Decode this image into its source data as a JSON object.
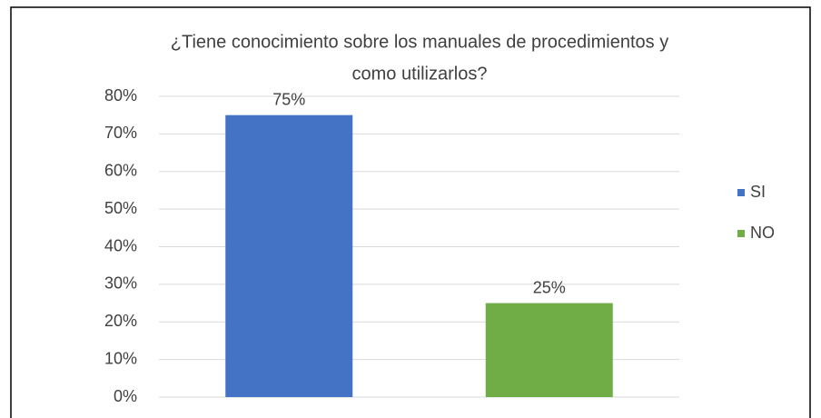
{
  "chart_data": {
    "type": "bar",
    "title": [
      "¿Tiene conocimiento sobre los manuales de procedimientos y",
      "como utilizarlos?"
    ],
    "categories": [
      "SI",
      "NO"
    ],
    "values": [
      75,
      25
    ],
    "value_labels": [
      "75%",
      "25%"
    ],
    "colors": [
      "#4472c4",
      "#70ad47"
    ],
    "ylim": [
      0,
      80
    ],
    "yticks": [
      {
        "value": 0,
        "label": "0%"
      },
      {
        "value": 10,
        "label": "10%"
      },
      {
        "value": 20,
        "label": "20%"
      },
      {
        "value": 30,
        "label": "30%"
      },
      {
        "value": 40,
        "label": "40%"
      },
      {
        "value": 50,
        "label": "50%"
      },
      {
        "value": 60,
        "label": "60%"
      },
      {
        "value": 70,
        "label": "70%"
      },
      {
        "value": 80,
        "label": "80%"
      }
    ],
    "grid": true,
    "legend": "right"
  }
}
